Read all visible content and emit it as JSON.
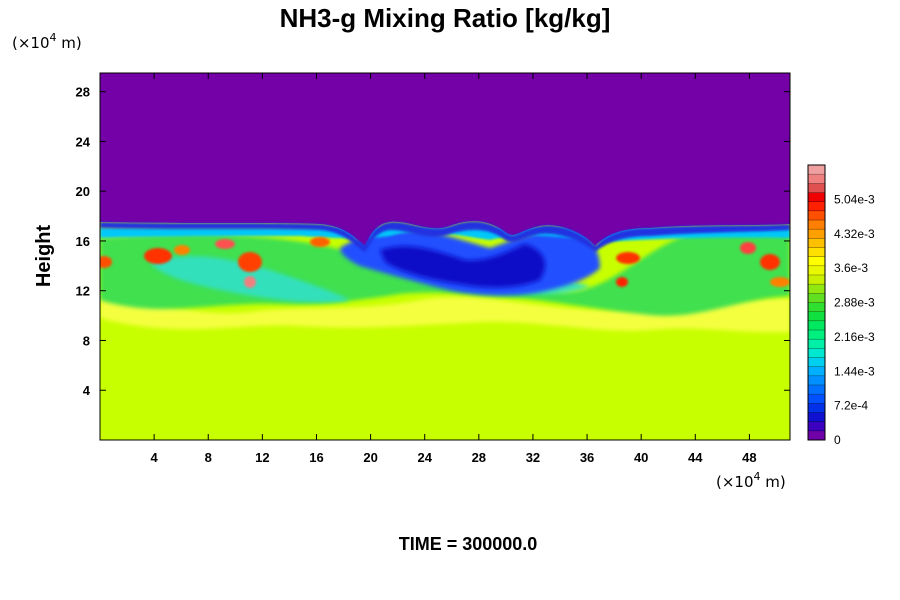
{
  "chart_data": {
    "type": "heatmap",
    "title": "NH3-g Mixing Ratio [kg/kg]",
    "ylabel": "Height",
    "xlabel": "",
    "x_unit": {
      "prefix": "(×10",
      "exp": "4",
      "suffix": " m)"
    },
    "y_unit": {
      "prefix": "(×10",
      "exp": "4",
      "suffix": " m)"
    },
    "xlim": [
      0,
      51
    ],
    "ylim": [
      0,
      29.5
    ],
    "x_ticks": [
      4,
      8,
      12,
      16,
      20,
      24,
      28,
      32,
      36,
      40,
      44,
      48
    ],
    "y_ticks": [
      4,
      8,
      12,
      16,
      20,
      24,
      28
    ],
    "x_tick_labels": [
      "4",
      "8",
      "12",
      "16",
      "20",
      "24",
      "28",
      "32",
      "36",
      "40",
      "44",
      "48"
    ],
    "y_tick_labels": [
      "4",
      "8",
      "12",
      "16",
      "20",
      "24",
      "28"
    ],
    "colorbar": {
      "min": 0,
      "max": 0.00576,
      "ticks": [
        0,
        0.00072,
        0.00144,
        0.00216,
        0.00288,
        0.0036,
        0.00432,
        0.00504
      ],
      "tick_labels": [
        "0",
        "7.2e-4",
        "1.44e-3",
        "2.16e-3",
        "2.88e-3",
        "3.6e-3",
        "4.32e-3",
        "5.04e-3"
      ],
      "colors": [
        "#7000a8",
        "#3c00c0",
        "#1010d0",
        "#0030e8",
        "#0050ff",
        "#0070ff",
        "#0090ff",
        "#00b0ff",
        "#00d0f0",
        "#00e8d0",
        "#00f0a8",
        "#00f080",
        "#00e860",
        "#10e040",
        "#30e030",
        "#60e020",
        "#90e810",
        "#c8f000",
        "#e8f800",
        "#ffff00",
        "#ffe000",
        "#ffc000",
        "#ffa000",
        "#ff8000",
        "#ff5000",
        "#ff2000",
        "#f00000",
        "#e05050",
        "#f08080",
        "#f0a0a0"
      ]
    },
    "field_description_values": {
      "lower_layer_value": 0.0035,
      "upper_layer_value": 0
    }
  },
  "footer": {
    "time_label": "TIME = 300000.0"
  }
}
